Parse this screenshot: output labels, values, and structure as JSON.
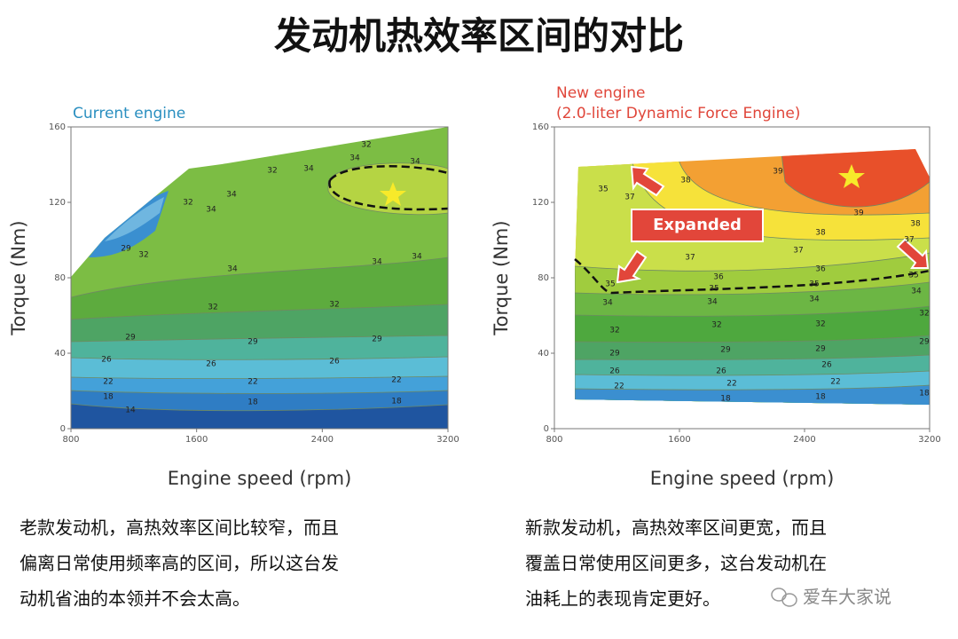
{
  "title": "发动机热效率区间的对比",
  "chart_data": [
    {
      "type": "contour",
      "title": "Current engine",
      "xlabel": "Engine speed (rpm)",
      "ylabel": "Torque (Nm)",
      "xlim": [
        800,
        3200
      ],
      "ylim": [
        0,
        160
      ],
      "xticks": [
        800,
        1600,
        2400,
        3200
      ],
      "yticks": [
        0,
        40,
        80,
        120,
        160
      ],
      "contour_labels": [
        32,
        34,
        34,
        34,
        32,
        32,
        34,
        34,
        29,
        32,
        34,
        34,
        34,
        32,
        32,
        29,
        29,
        29,
        26,
        26,
        26,
        22,
        22,
        22,
        18,
        18,
        18,
        14
      ]
    },
    {
      "type": "contour",
      "title": "New engine",
      "subtitle": "(2.0-liter Dynamic Force Engine)",
      "annotation": "Expanded",
      "xlabel": "Engine speed (rpm)",
      "ylabel": "Torque (Nm)",
      "xlim": [
        800,
        3200
      ],
      "ylim": [
        0,
        160
      ],
      "xticks": [
        800,
        1600,
        2400,
        3200
      ],
      "yticks": [
        0,
        40,
        80,
        120,
        160
      ],
      "contour_labels": [
        35,
        37,
        38,
        39,
        39,
        38,
        38,
        37,
        37,
        37,
        36,
        36,
        35,
        35,
        35,
        35,
        34,
        34,
        34,
        34,
        32,
        32,
        32,
        32,
        29,
        29,
        29,
        29,
        26,
        26,
        26,
        22,
        22,
        22,
        18,
        18,
        18
      ]
    }
  ],
  "captions": [
    [
      "老款发动机，高热效率区间比较窄，而且",
      "偏离日常使用频率高的区间，所以这台发",
      "动机省油的本领并不会太高。"
    ],
    [
      "新款发动机，高热效率区间更宽，而且",
      "覆盖日常使用区间更多，这台发动机在",
      "油耗上的表现肯定更好。"
    ]
  ],
  "watermark": "爱车大家说"
}
